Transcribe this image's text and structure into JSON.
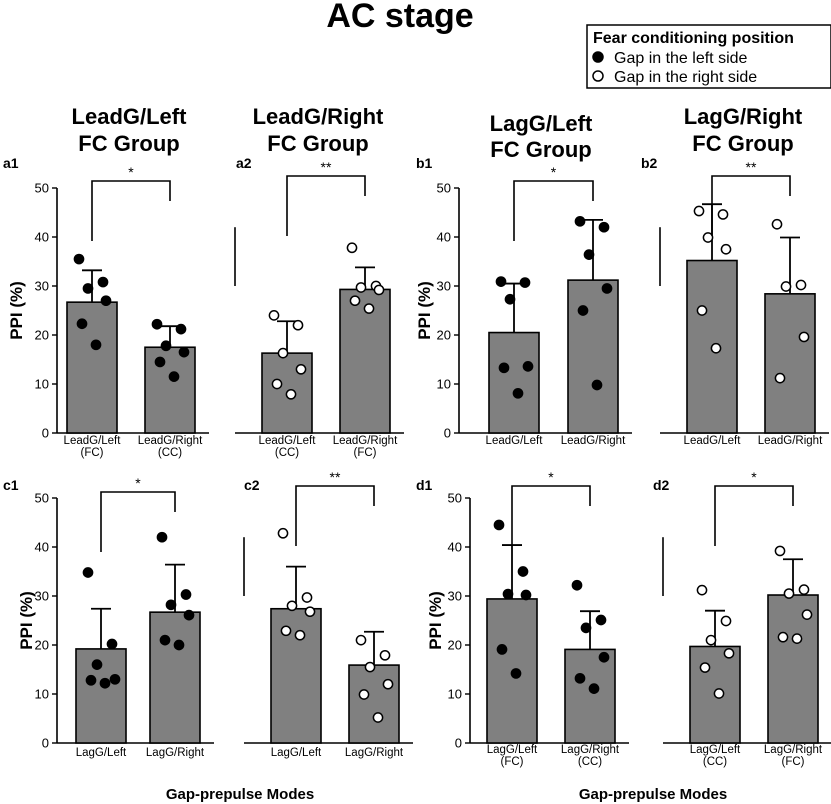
{
  "title": "AC stage",
  "legend": {
    "title": "Fear conditioning position",
    "items": [
      {
        "label": "Gap in the left side",
        "marker": "filled"
      },
      {
        "label": "Gap in the right side",
        "marker": "open"
      }
    ]
  },
  "group_titles": [
    [
      "LeadG/Left",
      "FC Group"
    ],
    [
      "LeadG/Right",
      "FC Group"
    ],
    [
      "LagG/Left",
      "FC Group"
    ],
    [
      "LagG/Right",
      "FC Group"
    ]
  ],
  "x_axis_labels": [
    "Gap-prepulse Modes",
    "Gap-prepulse Modes"
  ],
  "colors": {
    "bar": "#808080",
    "background": "#ffffff",
    "marker_filled": "#000000",
    "marker_open": "#ffffff"
  },
  "chart_data": [
    {
      "id": "a1",
      "type": "bar",
      "ylabel": "PPI (%)",
      "ylim": [
        0,
        50
      ],
      "yticks": [
        0,
        10,
        20,
        30,
        40,
        50
      ],
      "categories": [
        [
          "LeadG/Left",
          "(FC)"
        ],
        [
          "LeadG/Right",
          "(CC)"
        ]
      ],
      "values": [
        26.7,
        17.5
      ],
      "errors": [
        6.5,
        4.3
      ],
      "marker": "filled",
      "points": [
        [
          35.5,
          30.8,
          29.5,
          27.0,
          22.3,
          18.0
        ],
        [
          22.2,
          21.2,
          17.8,
          16.5,
          14.5,
          11.5
        ]
      ],
      "significance": "*"
    },
    {
      "id": "a2",
      "type": "bar",
      "ylabel": "",
      "ylim": [
        0,
        50
      ],
      "yticks": [
        0,
        10,
        20,
        30,
        40,
        50
      ],
      "categories": [
        [
          "LeadG/Left",
          "(CC)"
        ],
        [
          "LeadG/Right",
          "(FC)"
        ]
      ],
      "values": [
        16.3,
        29.3
      ],
      "errors": [
        6.5,
        4.5
      ],
      "marker": "open",
      "points": [
        [
          24.0,
          22.0,
          16.3,
          13.0,
          10.0,
          7.9
        ],
        [
          37.8,
          30.0,
          29.7,
          29.2,
          27.0,
          25.4
        ]
      ],
      "significance": "**"
    },
    {
      "id": "b1",
      "type": "bar",
      "ylabel": "PPI (%)",
      "ylim": [
        0,
        50
      ],
      "yticks": [
        0,
        10,
        20,
        30,
        40,
        50
      ],
      "categories": [
        [
          "LeadG/Left"
        ],
        [
          "LeadG/Right"
        ]
      ],
      "values": [
        20.5,
        31.2
      ],
      "errors": [
        10.0,
        12.3
      ],
      "marker": "filled",
      "points": [
        [
          30.9,
          30.7,
          27.3,
          13.6,
          13.3,
          8.1
        ],
        [
          43.2,
          42.0,
          36.4,
          29.5,
          25.0,
          9.8
        ]
      ],
      "significance": "*"
    },
    {
      "id": "b2",
      "type": "bar",
      "ylabel": "",
      "ylim": [
        0,
        50
      ],
      "yticks": [
        0,
        10,
        20,
        30,
        40,
        50
      ],
      "categories": [
        [
          "LeadG/Left"
        ],
        [
          "LeadG/Right"
        ]
      ],
      "values": [
        35.2,
        28.4
      ],
      "errors": [
        11.5,
        11.5
      ],
      "marker": "open",
      "points": [
        [
          45.3,
          44.6,
          39.9,
          37.5,
          25.0,
          17.3
        ],
        [
          42.6,
          30.2,
          29.9,
          19.6,
          11.2
        ]
      ],
      "significance": "**"
    },
    {
      "id": "c1",
      "type": "bar",
      "ylabel": "PPI (%)",
      "ylim": [
        0,
        50
      ],
      "yticks": [
        0,
        10,
        20,
        30,
        40,
        50
      ],
      "categories": [
        [
          "LagG/Left"
        ],
        [
          "LagG/Right"
        ]
      ],
      "values": [
        19.2,
        26.7
      ],
      "errors": [
        8.2,
        9.7
      ],
      "marker": "filled",
      "points": [
        [
          34.8,
          20.2,
          16.0,
          13.0,
          12.8,
          12.2
        ],
        [
          42.0,
          30.3,
          28.2,
          26.1,
          21.0,
          20.0
        ]
      ],
      "significance": "*"
    },
    {
      "id": "c2",
      "type": "bar",
      "ylabel": "",
      "ylim": [
        0,
        50
      ],
      "yticks": [
        0,
        10,
        20,
        30,
        40,
        50
      ],
      "categories": [
        [
          "LagG/Left"
        ],
        [
          "LagG/Right"
        ]
      ],
      "values": [
        27.4,
        15.9
      ],
      "errors": [
        8.6,
        6.8
      ],
      "marker": "open",
      "points": [
        [
          42.8,
          29.7,
          28.0,
          26.8,
          22.9,
          22.0
        ],
        [
          21.0,
          17.9,
          15.5,
          12.0,
          9.9,
          5.2
        ]
      ],
      "significance": "**"
    },
    {
      "id": "d1",
      "type": "bar",
      "ylabel": "PPI (%)",
      "ylim": [
        0,
        50
      ],
      "yticks": [
        0,
        10,
        20,
        30,
        40,
        50
      ],
      "categories": [
        [
          "LagG/Left",
          "(FC)"
        ],
        [
          "LagG/Right",
          "(CC)"
        ]
      ],
      "values": [
        29.4,
        19.1
      ],
      "errors": [
        11.0,
        7.8
      ],
      "marker": "filled",
      "points": [
        [
          44.5,
          35.0,
          30.4,
          30.2,
          19.1,
          14.2
        ],
        [
          32.2,
          25.1,
          23.5,
          17.5,
          13.2,
          11.1
        ]
      ],
      "significance": "*"
    },
    {
      "id": "d2",
      "type": "bar",
      "ylabel": "",
      "ylim": [
        0,
        50
      ],
      "yticks": [
        0,
        10,
        20,
        30,
        40,
        50
      ],
      "categories": [
        [
          "LagG/Left",
          "(CC)"
        ],
        [
          "LagG/Right",
          "(FC)"
        ]
      ],
      "values": [
        19.7,
        30.2
      ],
      "errors": [
        7.3,
        7.3
      ],
      "marker": "open",
      "points": [
        [
          31.2,
          24.9,
          21.0,
          18.3,
          15.4,
          10.1
        ],
        [
          39.2,
          31.3,
          30.5,
          26.2,
          21.6,
          21.3
        ]
      ],
      "significance": "*"
    }
  ]
}
